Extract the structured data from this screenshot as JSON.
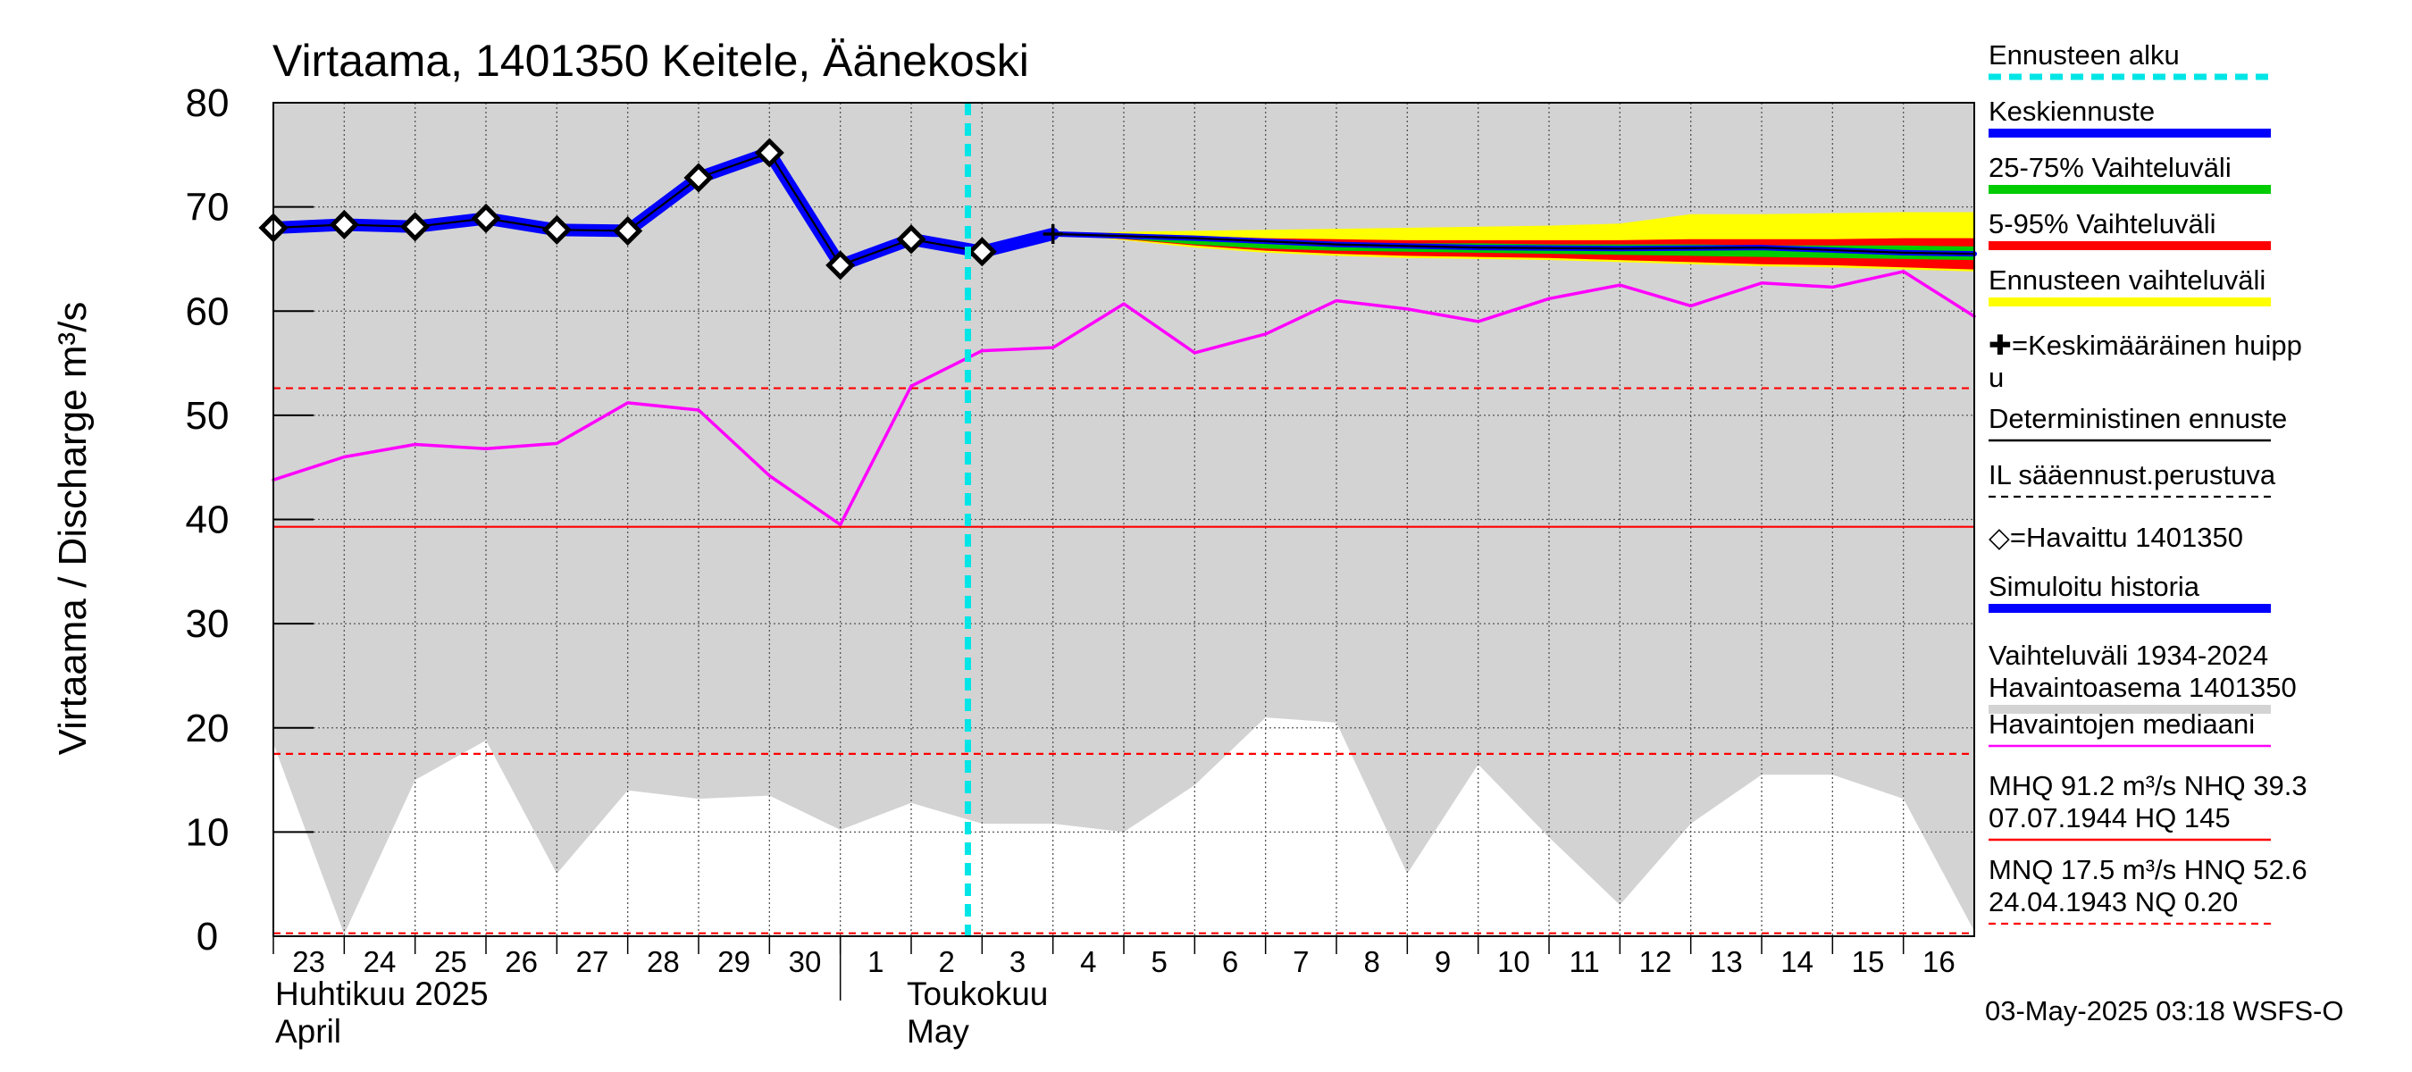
{
  "chart_data": {
    "type": "line",
    "title": "Virtaama, 1401350 Keitele, Äänekoski",
    "ylabel": "Virtaama / Discharge    m³/s",
    "ylim": [
      0,
      80
    ],
    "yticks": [
      "0",
      "10",
      "20",
      "30",
      "40",
      "50",
      "60",
      "70",
      "80"
    ],
    "x_start_day": 23,
    "x_end_day": 47,
    "day_labels": [
      "23",
      "24",
      "25",
      "26",
      "27",
      "28",
      "29",
      "30",
      "1",
      "2",
      "3",
      "4",
      "5",
      "6",
      "7",
      "8",
      "9",
      "10",
      "11",
      "12",
      "13",
      "14",
      "15",
      "16"
    ],
    "month_labels": [
      {
        "line1": "Huhtikuu  2025",
        "line2": "April",
        "day": 23
      },
      {
        "line1": "Toukokuu",
        "line2": "May",
        "day": 32
      }
    ],
    "forecast_start_day": 32.8,
    "variation_range": {
      "x": [
        23,
        24,
        25,
        26,
        27,
        28,
        29,
        30,
        31,
        32,
        33,
        34,
        35,
        36,
        37,
        38,
        39,
        40,
        41,
        42,
        43,
        44,
        45,
        46,
        47
      ],
      "lower": [
        18.5,
        0.2,
        15,
        18.8,
        6,
        14,
        13.2,
        13.5,
        10.2,
        12.8,
        10.8,
        10.8,
        10,
        14.5,
        21,
        20.5,
        6,
        16.5,
        9.5,
        3,
        10.8,
        15.5,
        15.5,
        13.2,
        0.5
      ],
      "upper": [
        80,
        80,
        80,
        80,
        80,
        80,
        80,
        80,
        80,
        80,
        80,
        80,
        80,
        80,
        80,
        80,
        80,
        80,
        80,
        80,
        80,
        80,
        80,
        80,
        80
      ]
    },
    "series": [
      {
        "name": "Havaintojen mediaani",
        "color": "#ff00ff",
        "x": [
          23,
          24,
          25,
          26,
          27,
          28,
          29,
          30,
          31,
          32,
          33,
          34,
          35,
          36,
          37,
          38,
          39,
          40,
          41,
          42,
          43,
          44,
          45,
          46,
          47
        ],
        "values": [
          43.8,
          46,
          47.2,
          46.8,
          47.3,
          51.2,
          50.5,
          44.2,
          39.5,
          52.8,
          56.2,
          56.5,
          60.7,
          56,
          57.8,
          61,
          60.2,
          59,
          61.2,
          62.5,
          60.5,
          62.7,
          62.3,
          63.8,
          59.5
        ]
      },
      {
        "name": "Simuloitu historia",
        "color": "#0000ff",
        "x": [
          23,
          24,
          25,
          26,
          27,
          28,
          29,
          30,
          31,
          32,
          33,
          34
        ],
        "values": [
          68,
          68.3,
          68.1,
          68.9,
          67.8,
          67.7,
          72.8,
          75.2,
          64.4,
          66.9,
          65.7,
          67.4
        ]
      },
      {
        "name": "Havaittu 1401350",
        "x": [
          23,
          24,
          25,
          26,
          27,
          28,
          29,
          30,
          31,
          32,
          33
        ],
        "values": [
          68,
          68.3,
          68.1,
          68.9,
          67.8,
          67.7,
          72.8,
          75.2,
          64.4,
          66.9,
          65.7
        ]
      },
      {
        "name": "Keskiennuste",
        "color": "#0000ff",
        "x": [
          34,
          36,
          38,
          40,
          42,
          44,
          46,
          47
        ],
        "values": [
          67.4,
          67,
          66.4,
          66.1,
          66,
          66.1,
          65.6,
          65.5
        ]
      },
      {
        "name": "Deterministinen ennuste",
        "color": "#000000",
        "x": [
          34,
          36,
          38,
          40,
          42,
          44,
          46,
          47
        ],
        "values": [
          67.4,
          67,
          66.4,
          66.1,
          66,
          66.1,
          65.6,
          65.5
        ]
      }
    ],
    "forecast_bands": {
      "x": [
        34,
        35,
        36,
        37,
        38,
        39,
        40,
        41,
        42,
        43,
        44,
        45,
        46,
        47
      ],
      "yellow": {
        "lower": [
          67.4,
          66.8,
          66.1,
          65.6,
          65.3,
          65.1,
          65.0,
          64.9,
          64.7,
          64.5,
          64.3,
          64.2,
          64.0,
          63.8
        ],
        "upper": [
          67.4,
          67.6,
          67.7,
          67.8,
          67.9,
          68.0,
          68.1,
          68.2,
          68.4,
          69.3,
          69.3,
          69.4,
          69.5,
          69.5
        ]
      },
      "red": {
        "lower": [
          67.4,
          66.9,
          66.3,
          65.8,
          65.5,
          65.3,
          65.2,
          65.1,
          64.9,
          64.7,
          64.5,
          64.4,
          64.2,
          64.0
        ],
        "upper": [
          67.4,
          67.3,
          67.2,
          67.0,
          66.9,
          66.8,
          66.8,
          66.8,
          66.8,
          66.9,
          66.9,
          66.9,
          67.0,
          67.0
        ]
      },
      "green": {
        "lower": [
          67.4,
          66.95,
          66.4,
          66.0,
          65.8,
          65.7,
          65.6,
          65.5,
          65.4,
          65.3,
          65.2,
          65.1,
          65.0,
          64.9
        ],
        "upper": [
          67.4,
          67.1,
          66.9,
          66.7,
          66.6,
          66.5,
          66.5,
          66.4,
          66.4,
          66.4,
          66.3,
          66.3,
          66.3,
          66.2
        ]
      }
    },
    "mean_peak": {
      "x": 34,
      "y": 67.4
    },
    "reference_lines": [
      {
        "name": "MHQ",
        "value": 91.2,
        "style": "dashed"
      },
      {
        "name": "NHQ",
        "value": 39.3,
        "style": "solid"
      },
      {
        "name": "HNQ",
        "value": 52.6,
        "style": "dashed"
      },
      {
        "name": "MNQ",
        "value": 17.5,
        "style": "dashed"
      },
      {
        "name": "NQ",
        "value": 0.2,
        "style": "dashed"
      }
    ],
    "legend": [
      {
        "label": "Ennusteen alku",
        "color": "#00e5e5",
        "style": "dashed"
      },
      {
        "label": "Keskiennuste",
        "color": "#0000ff",
        "style": "thick"
      },
      {
        "label": "25-75% Vaihteluväli",
        "color": "#00cc00",
        "style": "thick"
      },
      {
        "label": "5-95% Vaihteluväli",
        "color": "#ff0000",
        "style": "thick"
      },
      {
        "label": "Ennusteen vaihteluväli",
        "color": "#ffff00",
        "style": "thick"
      },
      {
        "label": "✚=Keskimääräinen huipp",
        "label2": "u",
        "color": "#000000",
        "style": "none"
      },
      {
        "label": "Deterministinen ennuste",
        "color": "#000000",
        "style": "thin"
      },
      {
        "label": "IL sääennust.perustuva",
        "color": "#000000",
        "style": "dashed-thin"
      },
      {
        "label": "◇=Havaittu 1401350",
        "color": "#000000",
        "style": "none"
      },
      {
        "label": "Simuloitu historia",
        "color": "#0000ff",
        "style": "thick"
      },
      {
        "label": "Vaihteluväli 1934-2024",
        "label2": " Havaintoasema 1401350",
        "color": "#d3d3d3",
        "style": "thick"
      },
      {
        "label": "Havaintojen mediaani",
        "color": "#ff00ff",
        "style": "thin"
      },
      {
        "label": "MHQ 91.2 m³/s NHQ 39.3",
        "label2": "07.07.1944 HQ  145",
        "color": "#ff0000",
        "style": "thin"
      },
      {
        "label": "MNQ 17.5 m³/s HNQ 52.6",
        "label2": "24.04.1943 NQ 0.20",
        "color": "#ff0000",
        "style": "dashed-thin"
      }
    ],
    "footer": "03-May-2025 03:18 WSFS-O"
  }
}
